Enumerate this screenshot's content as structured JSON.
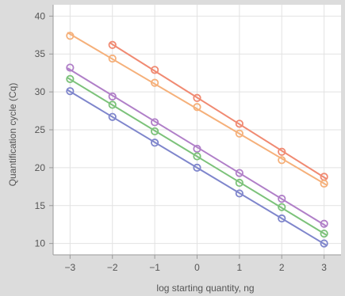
{
  "chart_data": {
    "type": "scatter",
    "title": "",
    "xlabel": "log starting quantity, ng",
    "ylabel": "Quantification cycle (Cq)",
    "xlim": [
      -3.4,
      3.4
    ],
    "ylim": [
      8.5,
      41.5
    ],
    "xticks": [
      -3,
      -2,
      -1,
      0,
      1,
      2,
      3
    ],
    "xtick_labels": [
      "−3",
      "−2",
      "−1",
      "0",
      "1",
      "2",
      "3"
    ],
    "yticks": [
      10,
      15,
      20,
      25,
      30,
      35,
      40
    ],
    "ytick_labels": [
      "10",
      "15",
      "20",
      "25",
      "30",
      "35",
      "40"
    ],
    "grid": true,
    "legend": "none",
    "fit_lines": true,
    "series": [
      {
        "color": "#f08a72",
        "x": [
          -2,
          -1,
          0,
          1,
          2,
          3
        ],
        "y": [
          36.2,
          32.9,
          29.2,
          25.8,
          22.1,
          18.8
        ]
      },
      {
        "color": "#f5b07a",
        "x": [
          -3,
          -2,
          -1,
          0,
          1,
          2,
          3
        ],
        "y": [
          37.4,
          34.4,
          31.2,
          28.0,
          24.5,
          21.0,
          17.9
        ]
      },
      {
        "color": "#b07fc8",
        "x": [
          -3,
          -2,
          -1,
          0,
          1,
          2,
          3
        ],
        "y": [
          33.2,
          29.4,
          26.0,
          22.5,
          19.3,
          15.9,
          12.6
        ]
      },
      {
        "color": "#7cc27a",
        "x": [
          -3,
          -2,
          -1,
          0,
          1,
          2,
          3
        ],
        "y": [
          31.7,
          28.3,
          24.8,
          21.5,
          18.0,
          14.8,
          11.3
        ]
      },
      {
        "color": "#7f86cc",
        "x": [
          -3,
          -2,
          -1,
          0,
          1,
          2,
          3
        ],
        "y": [
          30.1,
          26.7,
          23.3,
          20.0,
          16.6,
          13.3,
          10.0
        ]
      }
    ]
  }
}
